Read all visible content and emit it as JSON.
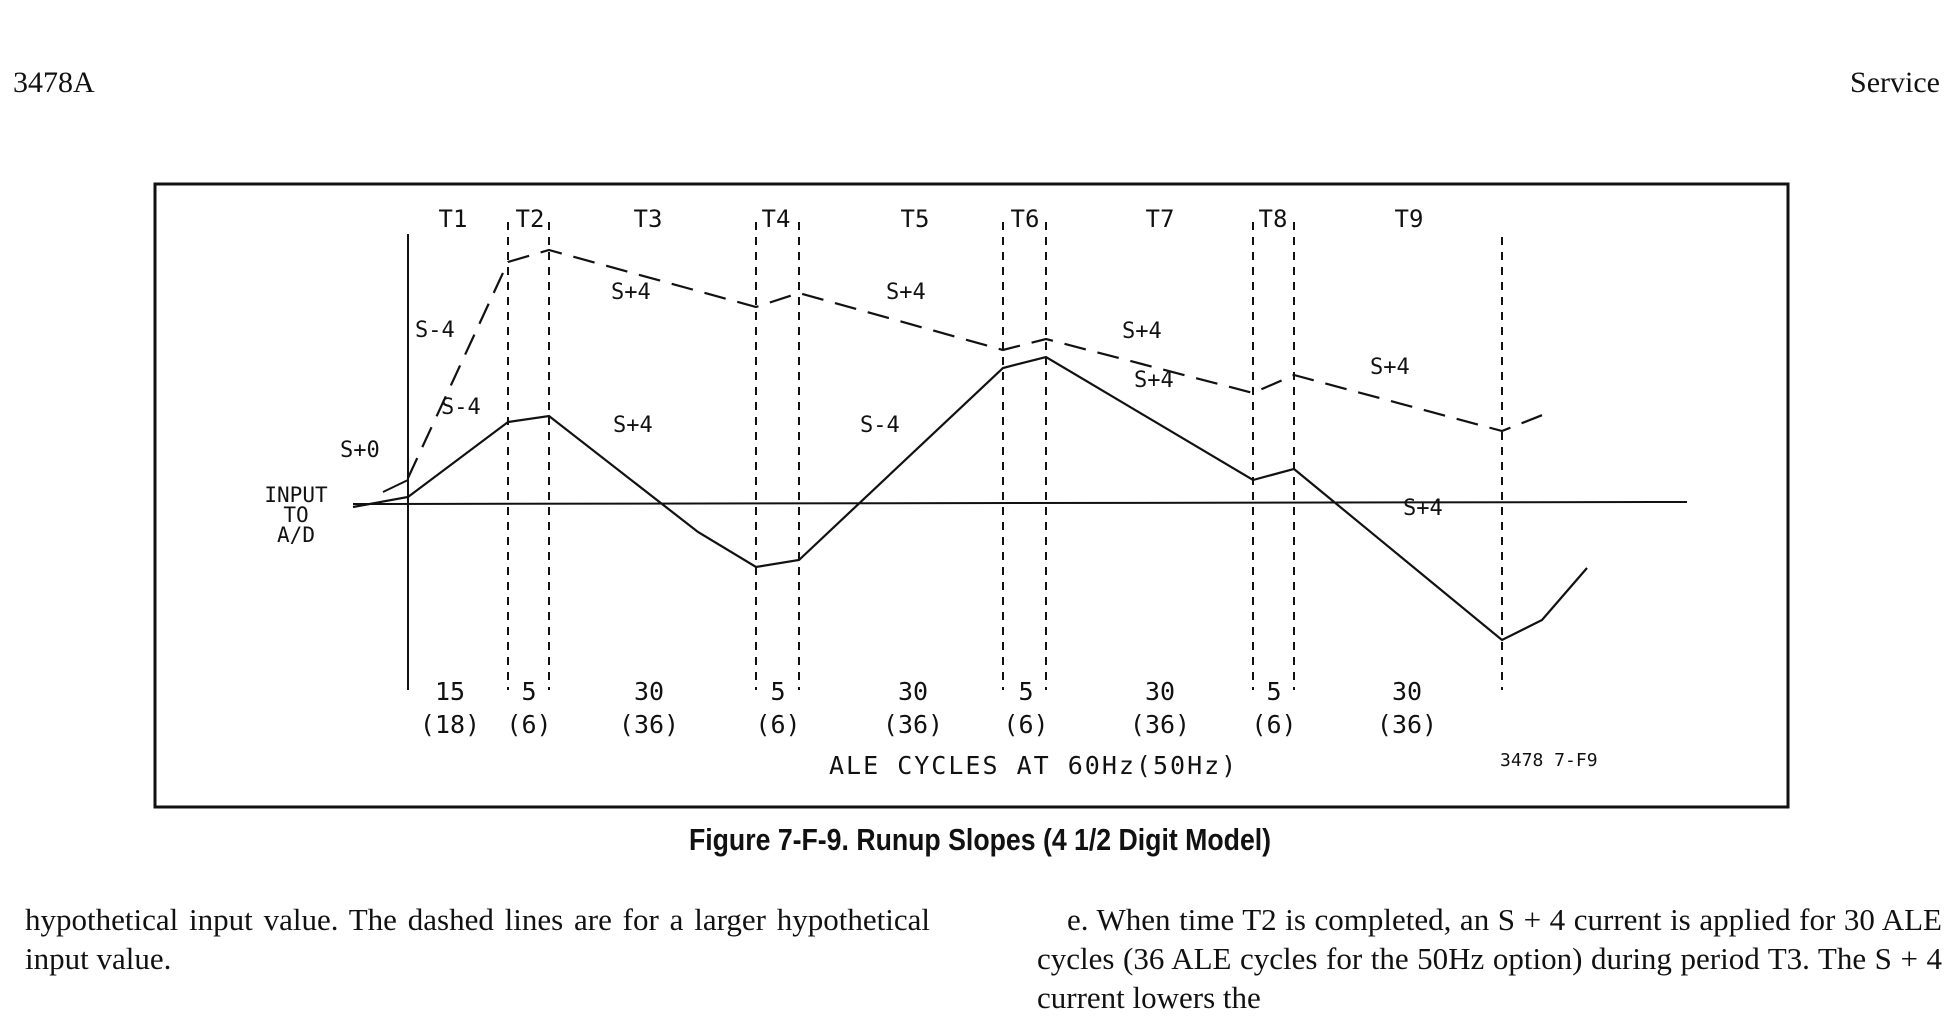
{
  "header": {
    "model": "3478A",
    "section": "Service"
  },
  "figure": {
    "period_labels": [
      "T1",
      "T2",
      "T3",
      "T4",
      "T5",
      "T6",
      "T7",
      "T8",
      "T9"
    ],
    "slope_labels_dashed": [
      "S-4",
      "S+4",
      "S+4",
      "S+4",
      "S+4"
    ],
    "slope_labels_solid": [
      "S+0",
      "S-4",
      "S+4",
      "S-4",
      "S+4",
      "S+4"
    ],
    "axis_label": [
      "INPUT",
      "TO",
      "A/D"
    ],
    "cycles_60hz": [
      "15",
      "5",
      "30",
      "5",
      "30",
      "5",
      "30",
      "5",
      "30"
    ],
    "cycles_50hz": [
      "(18)",
      "(6)",
      "(36)",
      "(6)",
      "(36)",
      "(6)",
      "(36)",
      "(6)",
      "(36)"
    ],
    "bottom_label": "ALE CYCLES AT 60Hz(50Hz)",
    "figure_id": "3478 7-F9"
  },
  "caption": "Figure 7-F-9. Runup Slopes (4 1/2 Digit Model)",
  "body": {
    "left_paragraph": "hypothetical input value. The dashed lines are for a larger hypothetical input value.",
    "right_paragraph": "e. When time T2 is completed, an S + 4 current is applied for 30 ALE cycles (36 ALE cycles for the 50Hz option) during period T3. The S + 4 current lowers the"
  }
}
